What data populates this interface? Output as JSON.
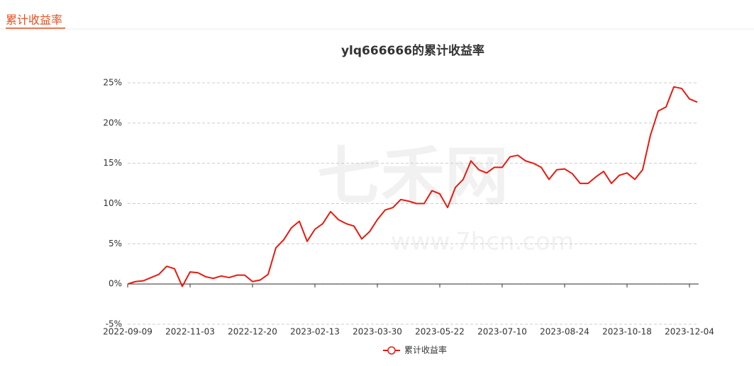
{
  "header": {
    "title": "累计收益率"
  },
  "watermark": {
    "logo": "七禾网",
    "site": "www.7hcn.com"
  },
  "chart_data": {
    "type": "line",
    "title": "ylq666666的累计收益率",
    "categories": [
      "2022-09-09",
      null,
      null,
      null,
      null,
      null,
      null,
      null,
      "2022-11-03",
      null,
      null,
      null,
      null,
      null,
      null,
      null,
      "2022-12-20",
      null,
      null,
      null,
      null,
      null,
      null,
      null,
      "2023-02-13",
      null,
      null,
      null,
      null,
      null,
      null,
      null,
      "2023-03-30",
      null,
      null,
      null,
      null,
      null,
      null,
      null,
      "2023-05-22",
      null,
      null,
      null,
      null,
      null,
      null,
      null,
      "2023-07-10",
      null,
      null,
      null,
      null,
      null,
      null,
      null,
      "2023-08-24",
      null,
      null,
      null,
      null,
      null,
      null,
      null,
      "2023-10-18",
      null,
      null,
      null,
      null,
      null,
      null,
      null,
      "2023-12-04",
      null
    ],
    "series": [
      {
        "name": "累计收益率",
        "color": "#e8190e",
        "values": [
          0,
          0.3,
          0.4,
          0.8,
          1.2,
          2.2,
          1.9,
          -0.3,
          1.5,
          1.4,
          0.9,
          0.7,
          1.0,
          0.8,
          1.1,
          1.1,
          0.3,
          0.5,
          1.2,
          4.5,
          5.5,
          7.0,
          7.8,
          5.3,
          6.8,
          7.5,
          9.0,
          8.0,
          7.5,
          7.2,
          5.6,
          6.5,
          8.0,
          9.2,
          9.5,
          10.5,
          10.3,
          10.0,
          10.0,
          11.6,
          11.2,
          9.5,
          12.0,
          13.0,
          15.3,
          14.2,
          13.8,
          14.5,
          14.5,
          15.8,
          16.0,
          15.3,
          15.0,
          14.5,
          13.0,
          14.2,
          14.3,
          13.7,
          12.5,
          12.5,
          13.3,
          14.0,
          12.5,
          13.5,
          13.8,
          13.0,
          14.2,
          18.5,
          21.5,
          22.0,
          24.5,
          24.3,
          23.0,
          22.6
        ]
      }
    ],
    "ylim": [
      -5,
      25
    ],
    "yticks": [
      {
        "value": -5,
        "label": "-5%"
      },
      {
        "value": 0,
        "label": "0%"
      },
      {
        "value": 5,
        "label": "5%"
      },
      {
        "value": 10,
        "label": "10%"
      },
      {
        "value": 15,
        "label": "15%"
      },
      {
        "value": 20,
        "label": "20%"
      },
      {
        "value": 25,
        "label": "25%"
      }
    ],
    "grid": true
  }
}
